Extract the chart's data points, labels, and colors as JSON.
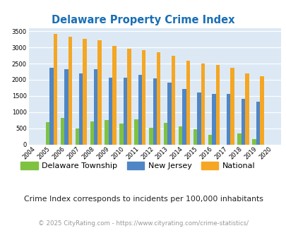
{
  "title": "Delaware Property Crime Index",
  "years": [
    2004,
    2005,
    2006,
    2007,
    2008,
    2009,
    2010,
    2011,
    2012,
    2013,
    2014,
    2015,
    2016,
    2017,
    2018,
    2019,
    2020
  ],
  "delaware_township": [
    0,
    680,
    820,
    490,
    720,
    760,
    655,
    780,
    510,
    675,
    565,
    475,
    290,
    0,
    340,
    160,
    0
  ],
  "new_jersey": [
    0,
    2360,
    2320,
    2205,
    2330,
    2065,
    2065,
    2155,
    2050,
    1905,
    1715,
    1615,
    1555,
    1555,
    1400,
    1315,
    0
  ],
  "national": [
    0,
    3420,
    3340,
    3270,
    3210,
    3045,
    2955,
    2910,
    2860,
    2735,
    2595,
    2495,
    2460,
    2375,
    2200,
    2110,
    0
  ],
  "delaware_color": "#7fc241",
  "nj_color": "#4f86c6",
  "national_color": "#f5a623",
  "bg_color": "#dce9f5",
  "ylim": [
    0,
    3600
  ],
  "yticks": [
    0,
    500,
    1000,
    1500,
    2000,
    2500,
    3000,
    3500
  ],
  "subtitle": "Crime Index corresponds to incidents per 100,000 inhabitants",
  "footer": "© 2025 CityRating.com - https://www.cityrating.com/crime-statistics/",
  "title_color": "#1a6fb5",
  "subtitle_color": "#222222",
  "footer_color": "#999999"
}
